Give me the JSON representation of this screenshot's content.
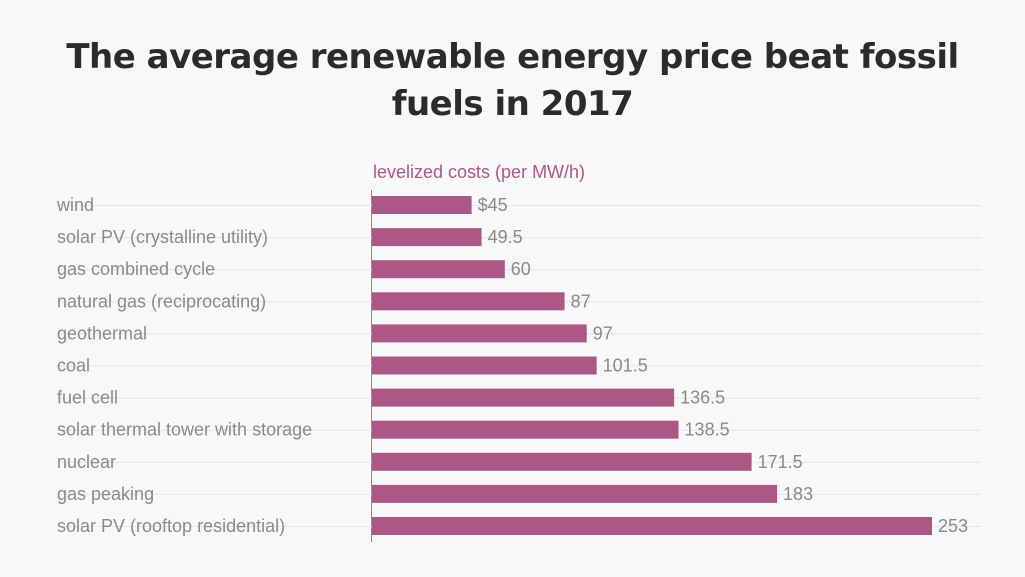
{
  "chart_data": {
    "type": "bar",
    "orientation": "horizontal",
    "title": "The average renewable energy price beat fossil fuels in 2017",
    "xlabel": "levelized costs (per MW/h)",
    "categories": [
      "wind",
      "solar PV (crystalline utility)",
      "gas combined cycle",
      "natural gas (reciprocating)",
      "geothermal",
      "coal",
      "fuel cell",
      "solar thermal tower with storage",
      "nuclear",
      "gas peaking",
      "solar PV (rooftop residential)"
    ],
    "values": [
      45,
      49.5,
      60,
      87,
      97,
      101.5,
      136.5,
      138.5,
      171.5,
      183,
      253
    ],
    "value_labels": [
      "$45",
      "49.5",
      "60",
      "87",
      "97",
      "101.5",
      "136.5",
      "138.5",
      "171.5",
      "183",
      "253"
    ],
    "xlim": [
      0,
      253
    ],
    "grid": true,
    "bar_color": "#ac5785",
    "label_color": "#8a8a8a",
    "title_color": "#2b2b2b",
    "axis_title_color": "#ac5785"
  }
}
